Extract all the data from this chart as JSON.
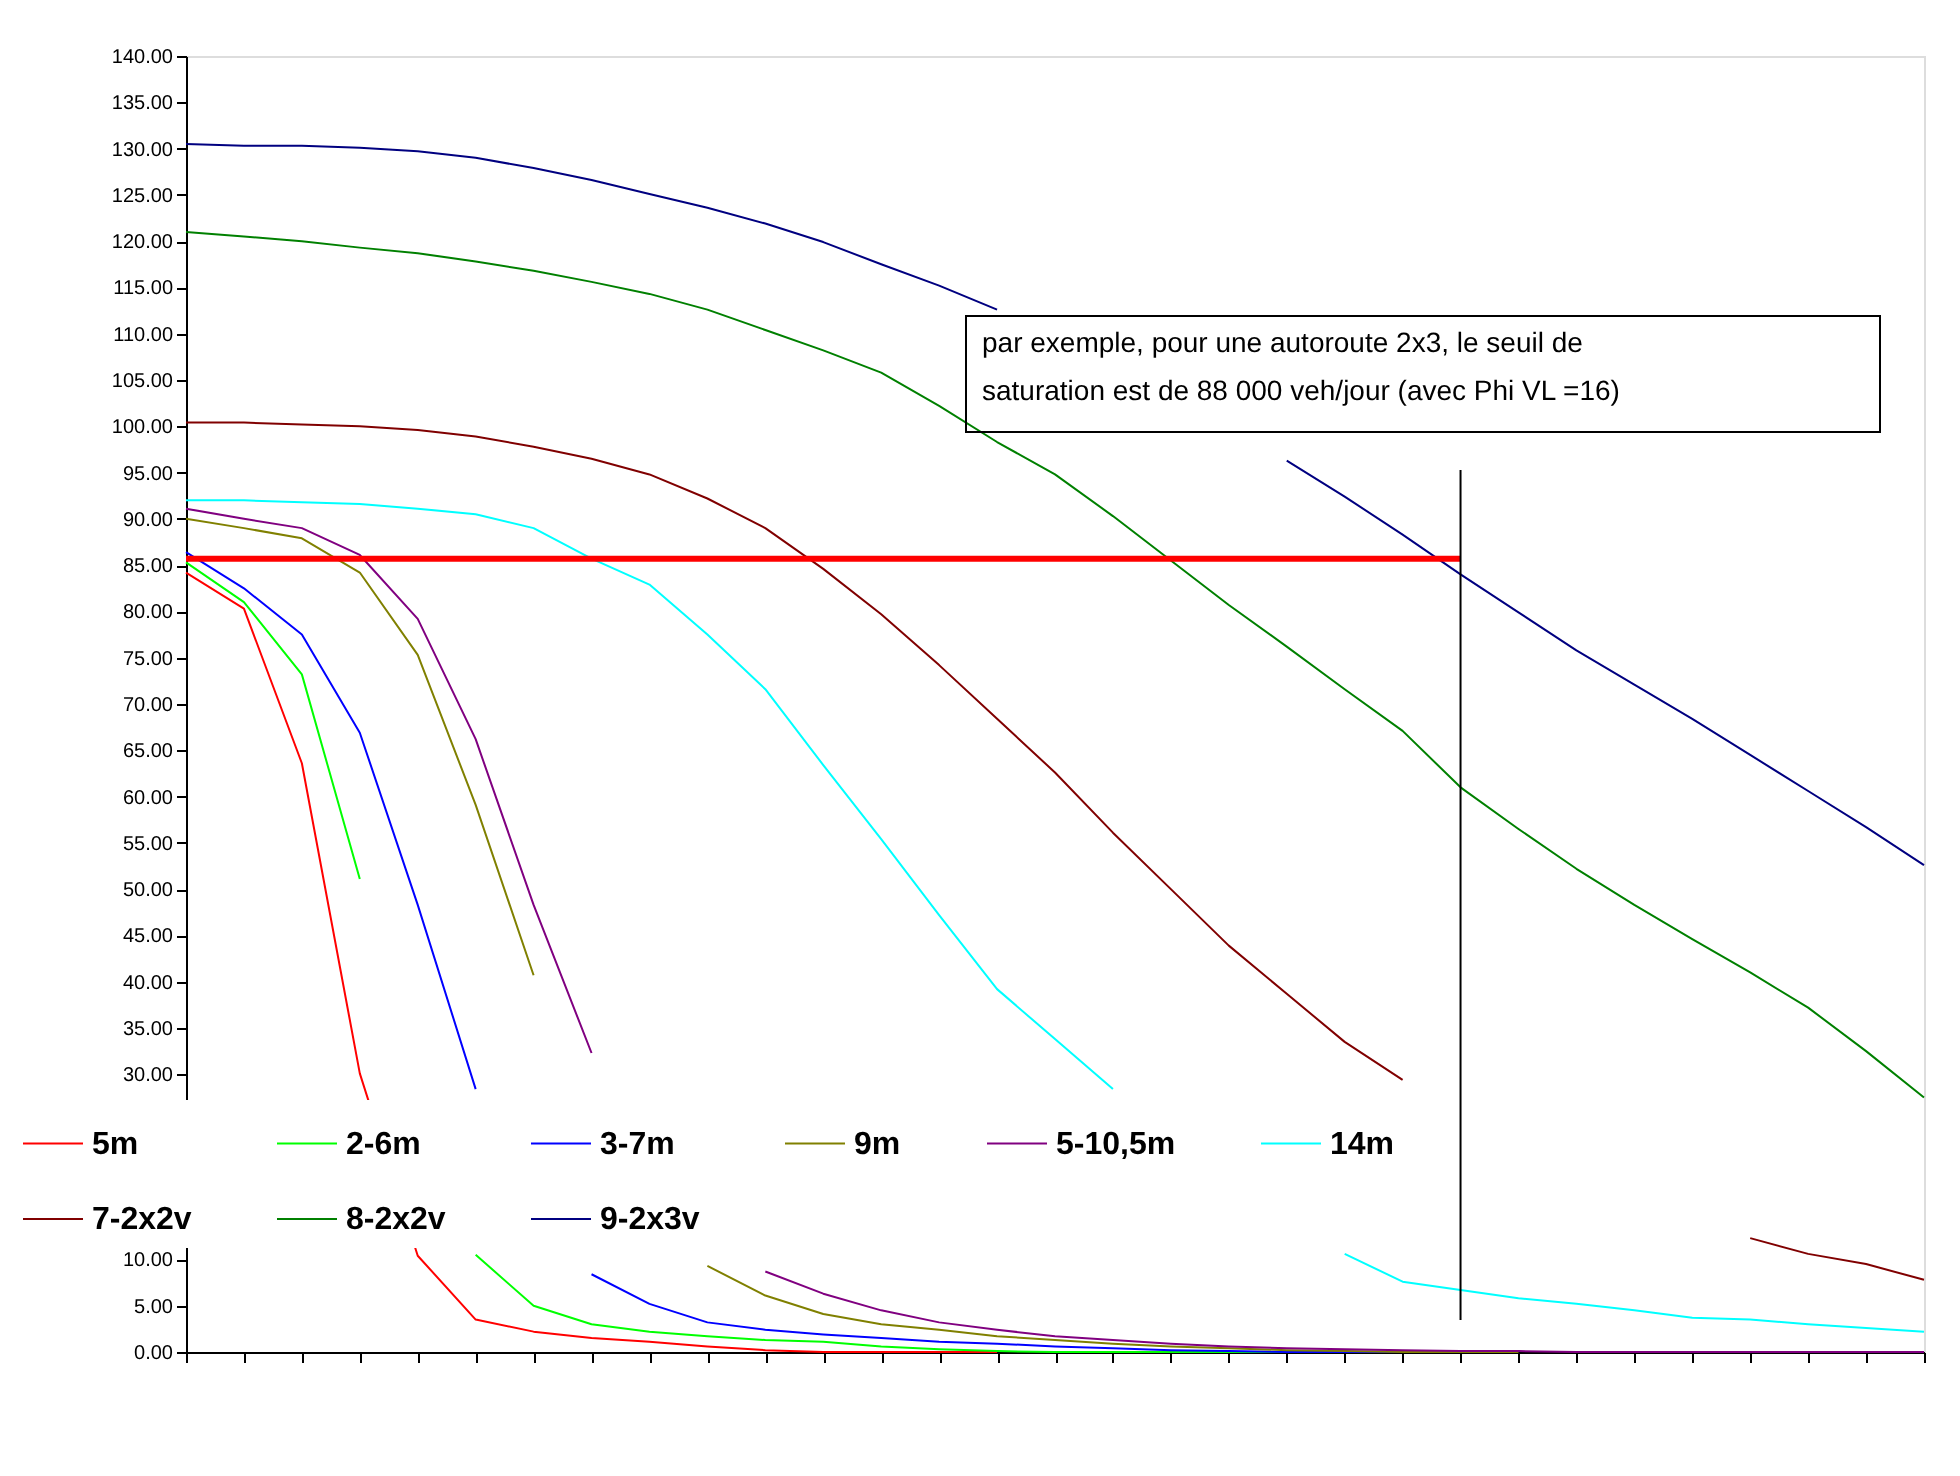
{
  "chart_data": {
    "type": "line",
    "categories": [
      null,
      null,
      null,
      null,
      null,
      null,
      null,
      null,
      null,
      null,
      null,
      null,
      null,
      null,
      null,
      null,
      null,
      null,
      null,
      null,
      null,
      null,
      null,
      null,
      null,
      null,
      null,
      null,
      null,
      null,
      null
    ],
    "series": [
      {
        "name": "5m",
        "color": "#ff0000",
        "values": [
          84.2,
          80.3,
          63.6,
          30.1,
          10.4,
          3.5,
          2.2,
          1.5,
          1.1,
          0.6,
          0.2,
          0,
          0,
          0,
          0,
          null,
          null,
          null,
          null,
          null,
          null,
          null,
          null,
          null,
          null,
          null,
          null,
          null,
          null,
          null,
          null
        ]
      },
      {
        "name": "2-6m",
        "color": "#00ff00",
        "values": [
          85.3,
          81,
          73.2,
          51.1,
          null,
          10.5,
          5,
          3,
          2.2,
          1.7,
          1.3,
          1.1,
          0.6,
          0.3,
          0.1,
          0,
          0,
          0,
          0,
          0,
          null,
          null,
          null,
          null,
          null,
          null,
          null,
          null,
          null,
          null,
          null
        ]
      },
      {
        "name": "3-7m",
        "color": "#0000ff",
        "values": [
          86.4,
          82.5,
          77.5,
          66.9,
          48.3,
          28.4,
          null,
          8.4,
          5.2,
          3.2,
          2.4,
          1.9,
          1.5,
          1.1,
          0.9,
          0.6,
          0.4,
          0.2,
          0.1,
          0,
          0,
          0,
          null,
          null,
          null,
          null,
          null,
          null,
          null,
          null,
          null
        ]
      },
      {
        "name": "9m",
        "color": "#808000",
        "values": [
          90,
          89,
          87.9,
          84.2,
          75.3,
          59.1,
          40.7,
          null,
          null,
          9.3,
          6.1,
          4.1,
          3,
          2.4,
          1.7,
          1.3,
          0.9,
          0.6,
          0.4,
          0.2,
          0.1,
          0,
          0,
          0,
          null,
          null,
          null,
          null,
          null,
          null,
          null
        ]
      },
      {
        "name": "5-10,5m",
        "color": "#800080",
        "values": [
          91.1,
          90,
          89,
          86.1,
          79.2,
          66.2,
          48.3,
          32.3,
          null,
          null,
          8.7,
          6.3,
          4.5,
          3.2,
          2.4,
          1.7,
          1.3,
          0.9,
          0.6,
          0.4,
          0.3,
          0.2,
          0.1,
          0.1,
          0,
          0,
          0,
          0,
          0,
          0,
          0
        ]
      },
      {
        "name": "14m",
        "color": "#00ffff",
        "values": [
          92,
          92,
          91.8,
          91.6,
          91.1,
          90.5,
          89,
          85.7,
          82.9,
          77.5,
          71.6,
          63.4,
          55.4,
          47.2,
          39.2,
          33.8,
          28.4,
          null,
          null,
          null,
          10.6,
          7.6,
          6.7,
          5.8,
          5.2,
          4.5,
          3.7,
          3.5,
          3.0,
          2.6,
          2.2
        ]
      },
      {
        "name": "7-2x2v",
        "color": "#800000",
        "values": [
          100.4,
          100.4,
          100.2,
          100,
          99.6,
          98.9,
          97.8,
          96.5,
          94.8,
          92.2,
          89,
          84.6,
          79.7,
          74.2,
          68.4,
          62.6,
          56.1,
          50,
          43.9,
          38.7,
          33.5,
          29.4,
          null,
          null,
          null,
          null,
          null,
          12.3,
          10.6,
          9.5,
          7.8
        ]
      },
      {
        "name": "8-2x2v",
        "color": "#008000",
        "values": [
          121,
          120.5,
          120,
          119.3,
          118.7,
          117.8,
          116.8,
          115.6,
          114.3,
          112.6,
          110.4,
          108.2,
          105.8,
          102.2,
          98.3,
          94.8,
          90.3,
          85.5,
          80.7,
          76.2,
          71.6,
          67.1,
          61,
          56.5,
          52.2,
          48.3,
          44.6,
          41,
          37.2,
          32.5,
          27.5
        ]
      },
      {
        "name": "9-2x3v",
        "color": "#000080",
        "values": [
          130.5,
          130.3,
          130.3,
          130.1,
          129.7,
          129,
          127.9,
          126.6,
          125.1,
          123.6,
          121.9,
          119.9,
          117.5,
          115.2,
          112.6,
          null,
          null,
          null,
          null,
          96.3,
          92.4,
          88.3,
          84,
          79.9,
          75.8,
          72.1,
          68.4,
          64.5,
          60.6,
          56.7,
          52.6
        ]
      },
      {
        "color": "#ff0000",
        "values": [
          85.7,
          85.7,
          85.7,
          85.7,
          85.7,
          85.7,
          85.7,
          85.7,
          85.7,
          85.7,
          85.7,
          85.7,
          85.7,
          85.7,
          85.7,
          85.7,
          85.7,
          85.7,
          85.7,
          85.7,
          85.7,
          85.7,
          85.7,
          null,
          null,
          null,
          null,
          null,
          null,
          null,
          null
        ]
      }
    ],
    "ylim": [
      0,
      140
    ],
    "yticks": [
      {
        "value": 0,
        "label": "0.00"
      },
      {
        "value": 5,
        "label": "5.00"
      },
      {
        "value": 10,
        "label": "10.00"
      },
      {
        "value": 30,
        "label": "30.00"
      },
      {
        "value": 35,
        "label": "35.00"
      },
      {
        "value": 40,
        "label": "40.00"
      },
      {
        "value": 45,
        "label": "45.00"
      },
      {
        "value": 50,
        "label": "50.00"
      },
      {
        "value": 55,
        "label": "55.00"
      },
      {
        "value": 60,
        "label": "60.00"
      },
      {
        "value": 65,
        "label": "65.00"
      },
      {
        "value": 70,
        "label": "70.00"
      },
      {
        "value": 75,
        "label": "75.00"
      },
      {
        "value": 80,
        "label": "80.00"
      },
      {
        "value": 85,
        "label": "85.00"
      },
      {
        "value": 90,
        "label": "90.00"
      },
      {
        "value": 95,
        "label": "95.00"
      },
      {
        "value": 100,
        "label": "100.00"
      },
      {
        "value": 105,
        "label": "105.00"
      },
      {
        "value": 110,
        "label": "110.00"
      },
      {
        "value": 115,
        "label": "115.00"
      },
      {
        "value": 120,
        "label": "120.00"
      },
      {
        "value": 125,
        "label": "125.00"
      },
      {
        "value": 130,
        "label": "130.00"
      },
      {
        "value": 135,
        "label": "135.00"
      },
      {
        "value": 140,
        "label": "140.00"
      }
    ],
    "annotations": [
      "par exemple, pour une autoroute 2x3, le seuil de saturation est de 88 000 veh/jour (avec Phi VL =16)"
    ],
    "tick_labels": "y",
    "legend": "bottom",
    "grid": false,
    "marker": "none",
    "line_style": "solid"
  }
}
